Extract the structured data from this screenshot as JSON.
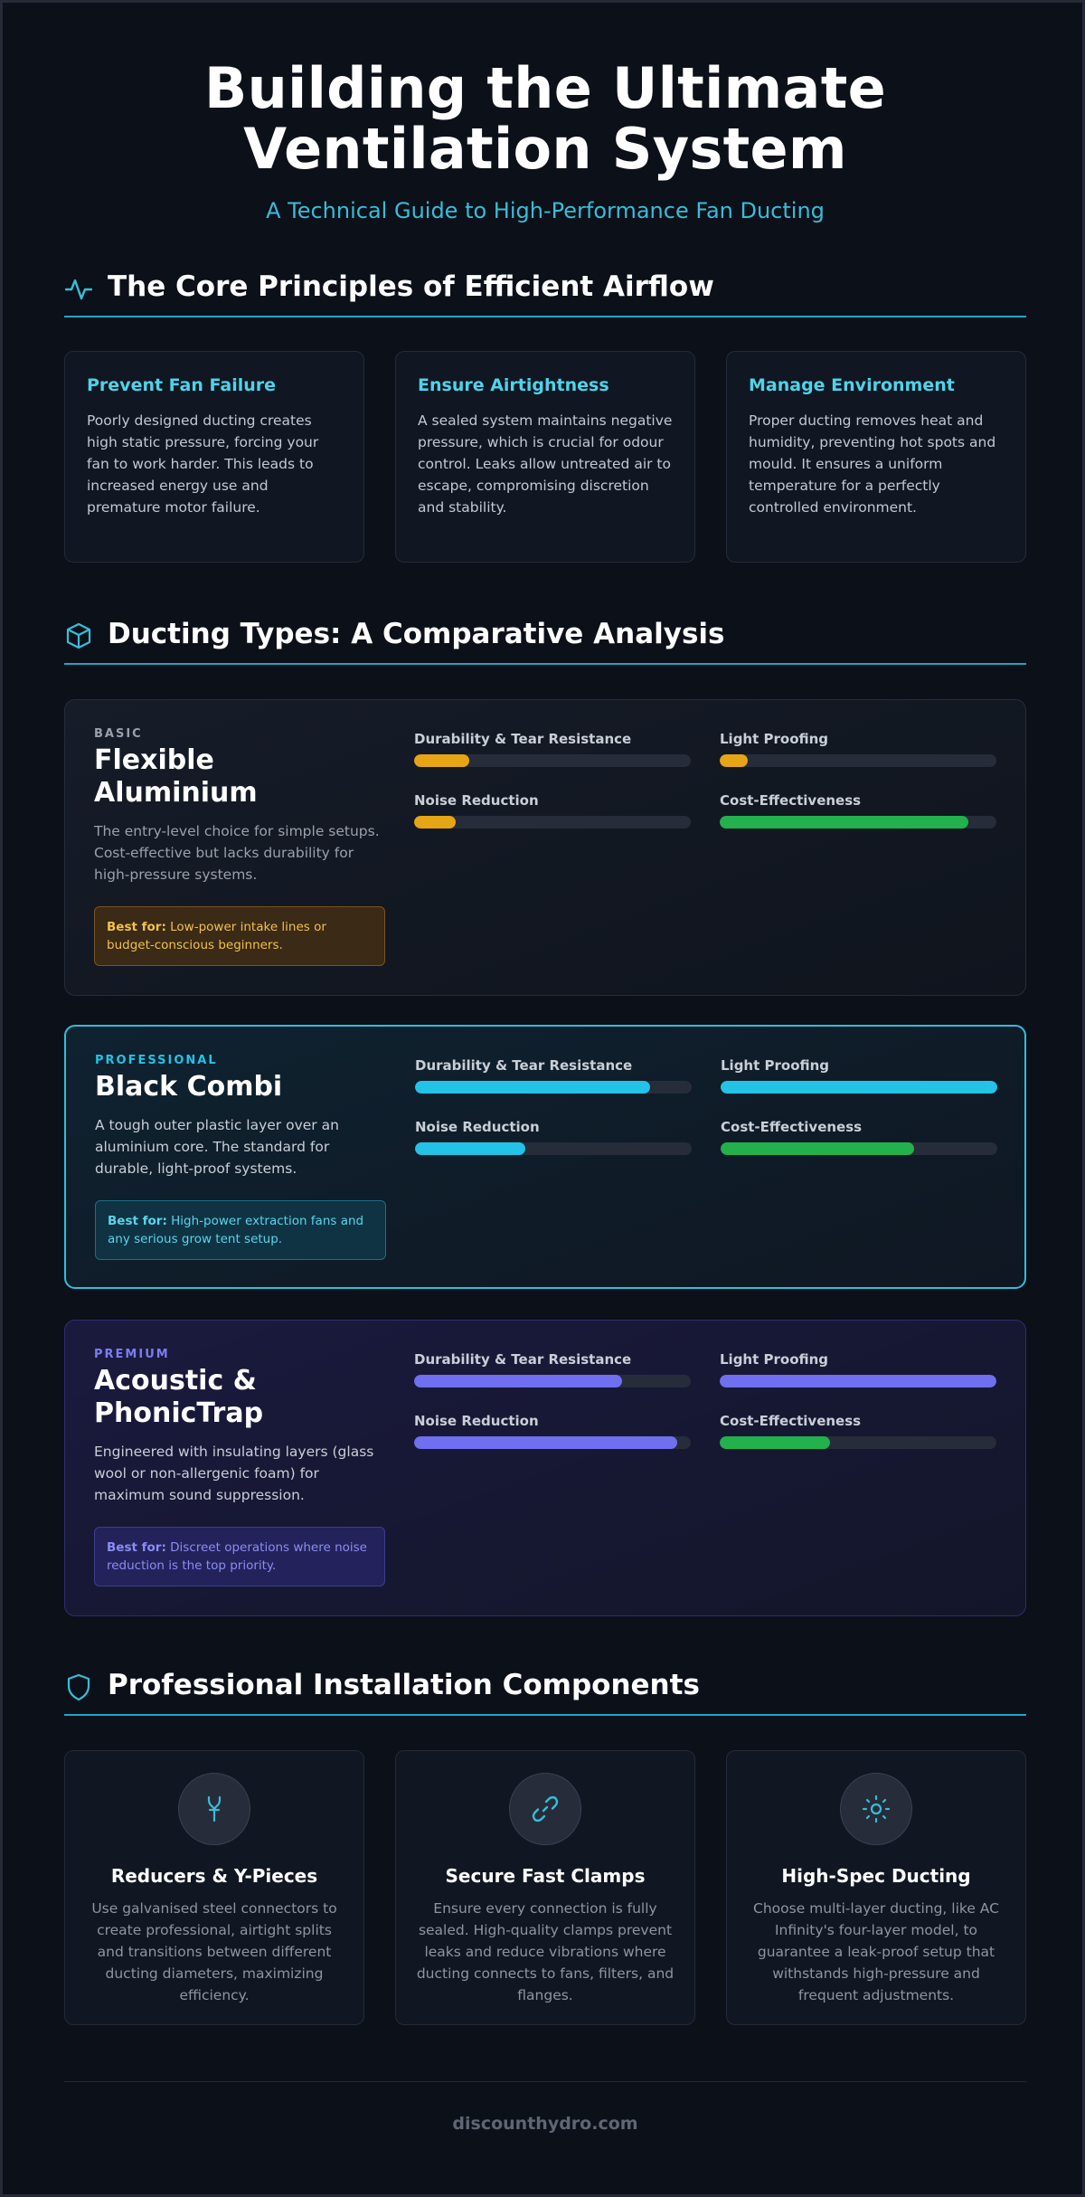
{
  "header": {
    "title_line1": "Building the Ultimate",
    "title_line2": "Ventilation System",
    "subtitle": "A Technical Guide to High-Performance Fan Ducting"
  },
  "sections": {
    "principles": {
      "title": "The Core Principles of Efficient Airflow",
      "icon": "activity-icon"
    },
    "ducting": {
      "title": "Ducting Types: A Comparative Analysis",
      "icon": "cube-icon"
    },
    "components": {
      "title": "Professional Installation Components",
      "icon": "shield-icon"
    }
  },
  "principles": [
    {
      "title": "Prevent Fan Failure",
      "text": "Poorly designed ducting creates high static pressure, forcing your fan to work harder. This leads to increased energy use and premature motor failure."
    },
    {
      "title": "Ensure Airtightness",
      "text": "A sealed system maintains negative pressure, which is crucial for odour control. Leaks allow untreated air to escape, compromising discretion and stability."
    },
    {
      "title": "Manage Environment",
      "text": "Proper ducting removes heat and humidity, preventing hot spots and mould. It ensures a uniform temperature for a perfectly controlled environment."
    }
  ],
  "metric_labels": {
    "durability": "Durability & Tear Resistance",
    "light": "Light Proofing",
    "noise": "Noise Reduction",
    "cost": "Cost-Effectiveness"
  },
  "ducts": [
    {
      "tag": "BASIC",
      "name_line1": "Flexible",
      "name_line2": "Aluminium",
      "desc": "The entry-level choice for simple setups. Cost-effective but lacks durability for high-pressure systems.",
      "best_label": "Best for:",
      "best_text": "Low-power intake lines or budget-conscious beginners.",
      "accent": "#e5a514",
      "cost_color": "#22b14c",
      "metrics": {
        "durability": 20,
        "light": 10,
        "noise": 15,
        "cost": 90
      }
    },
    {
      "tag": "PROFESSIONAL",
      "name_line1": "Black Combi",
      "name_line2": "",
      "desc": "A tough outer plastic layer over an aluminium core. The standard for durable, light-proof systems.",
      "best_label": "Best for:",
      "best_text": "High-power extraction fans and any serious grow tent setup.",
      "accent": "#22c3e6",
      "cost_color": "#22b14c",
      "metrics": {
        "durability": 85,
        "light": 100,
        "noise": 40,
        "cost": 70
      }
    },
    {
      "tag": "PREMIUM",
      "name_line1": "Acoustic &",
      "name_line2": "PhonicTrap",
      "desc": "Engineered with insulating layers (glass wool or non-allergenic foam) for maximum sound suppression.",
      "best_label": "Best for:",
      "best_text": "Discreet operations where noise reduction is the top priority.",
      "accent": "#6f6ff0",
      "cost_color": "#22b14c",
      "metrics": {
        "durability": 75,
        "light": 100,
        "noise": 95,
        "cost": 40
      }
    }
  ],
  "components": [
    {
      "title": "Reducers & Y-Pieces",
      "icon": "y-splitter-icon",
      "text": "Use galvanised steel connectors to create professional, airtight splits and transitions between different ducting diameters, maximizing efficiency."
    },
    {
      "title": "Secure Fast Clamps",
      "icon": "link-icon",
      "text": "Ensure every connection is fully sealed. High-quality clamps prevent leaks and reduce vibrations where ducting connects to fans, filters, and flanges."
    },
    {
      "title": "High-Spec Ducting",
      "icon": "sun-icon",
      "text": "Choose multi-layer ducting, like AC Infinity's four-layer model, to guarantee a leak-proof setup that withstands high-pressure and frequent adjustments."
    }
  ],
  "footer": {
    "site": "discounthydro.com"
  },
  "colors": {
    "accent": "#1fa6c6",
    "background": "#0c1019"
  }
}
